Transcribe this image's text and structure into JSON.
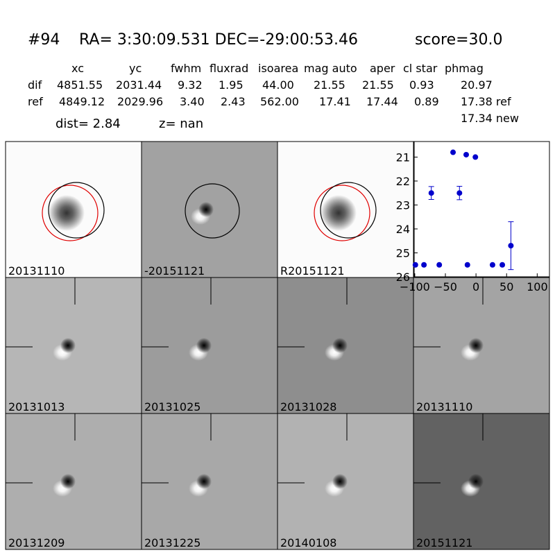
{
  "header": {
    "id": "#94",
    "coords": "RA= 3:30:09.531 DEC=-29:00:53.46",
    "score": "score=30.0"
  },
  "table": {
    "columns": [
      "xc",
      "yc",
      "fwhm",
      "fluxrad",
      "isoarea",
      "mag auto",
      "aper",
      "cl star",
      "phmag"
    ],
    "rows": [
      [
        "dif",
        "4851.55",
        "2031.44",
        "9.32",
        "1.95",
        "44.00",
        "21.55",
        "21.55",
        "0.93",
        "20.97"
      ],
      [
        "ref",
        "4849.12",
        "2029.96",
        "3.40",
        "2.43",
        "562.00",
        "17.41",
        "17.44",
        "0.89",
        "17.38 ref"
      ]
    ],
    "extra": "17.34 new"
  },
  "dist": "dist=  2.84",
  "z": "z=   nan",
  "panels": [
    {
      "label": "20131110"
    },
    {
      "label": "-20151121"
    },
    {
      "label": "R20151121"
    },
    {
      "label": "20131013"
    },
    {
      "label": "20131025"
    },
    {
      "label": "20131028"
    },
    {
      "label": "20131110",
      "label_color": "#ff0000"
    },
    {
      "label": "20131209"
    },
    {
      "label": "20131225"
    },
    {
      "label": "20140108"
    },
    {
      "label": "20151121"
    }
  ],
  "chart_data": {
    "type": "errorbar",
    "color": "#0000cc",
    "x": [
      -99,
      -85,
      -73,
      -60,
      -37.5,
      -27,
      -16,
      -14,
      -1,
      27,
      43,
      57
    ],
    "values": [
      25.5,
      25.5,
      22.5,
      25.5,
      20.8,
      22.5,
      20.9,
      25.5,
      21.0,
      25.5,
      25.5,
      24.7
    ],
    "errors": [
      null,
      null,
      0.27,
      null,
      null,
      0.28,
      null,
      null,
      null,
      null,
      null,
      1.0
    ],
    "xlim": [
      -101,
      120
    ],
    "ylim": [
      20.35,
      26
    ],
    "y_inverted": true,
    "xticks": [
      {
        "value": -100,
        "label": "−100"
      },
      {
        "value": -50,
        "label": "−50"
      },
      0,
      50,
      100
    ],
    "yticks": [
      21,
      22,
      23,
      24,
      25,
      26
    ]
  }
}
